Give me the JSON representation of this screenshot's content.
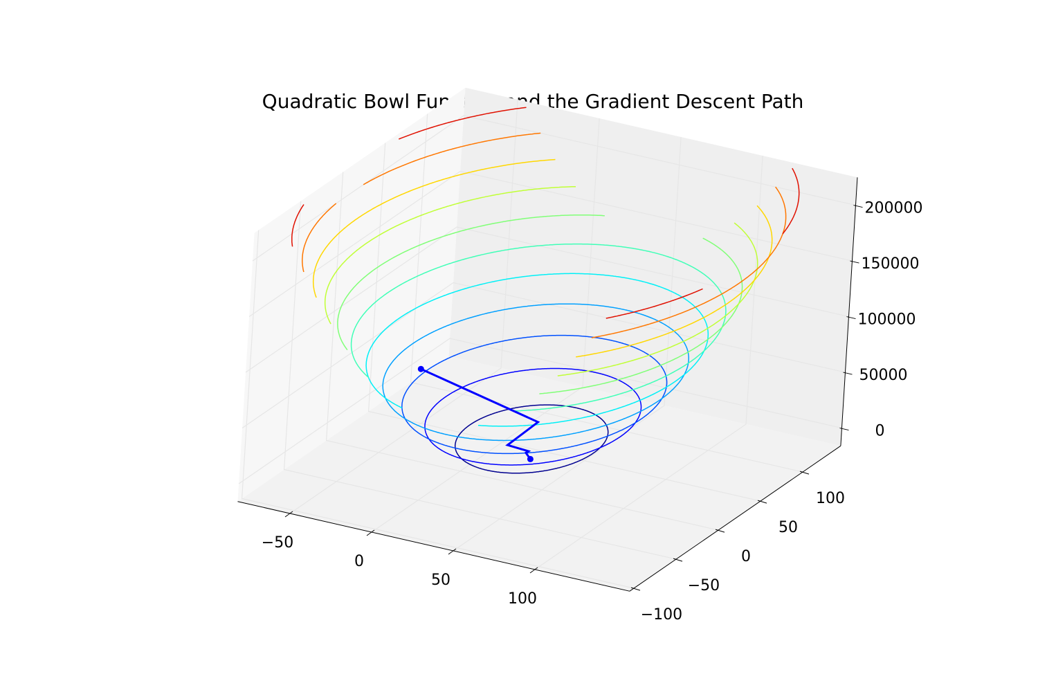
{
  "chart_data": {
    "type": "contour3d",
    "title": "Quadratic Bowl Function and the Gradient Descent Path",
    "xlim": [
      -82,
      158
    ],
    "ylim": [
      -105,
      145
    ],
    "zlim": [
      -16000,
      225000
    ],
    "xticks": [
      {
        "value": -50,
        "label": "−50"
      },
      0,
      50,
      100
    ],
    "yticks": [
      {
        "value": -100,
        "label": "−100"
      },
      {
        "value": -50,
        "label": "−50"
      },
      0,
      50,
      100
    ],
    "zticks": [
      0,
      50000,
      100000,
      150000,
      200000
    ],
    "grid": true,
    "contours": {
      "levels": [
        20000,
        40000,
        60000,
        80000,
        100000,
        120000,
        140000,
        160000,
        180000,
        200000,
        220000
      ],
      "colors": [
        "#00008f",
        "#0000ff",
        "#0050ff",
        "#00a0ff",
        "#00f0f7",
        "#40ffb7",
        "#80ff77",
        "#c0ff36",
        "#ffd700",
        "#ff7700",
        "#e01000"
      ]
    },
    "path": {
      "color": "#0000ff",
      "x": [
        -30,
        50,
        30,
        38,
        35,
        37
      ],
      "y": [
        5,
        -10,
        -5,
        5,
        8,
        10
      ],
      "z": [
        63000,
        50000,
        20000,
        12000,
        8000,
        2000
      ]
    }
  }
}
